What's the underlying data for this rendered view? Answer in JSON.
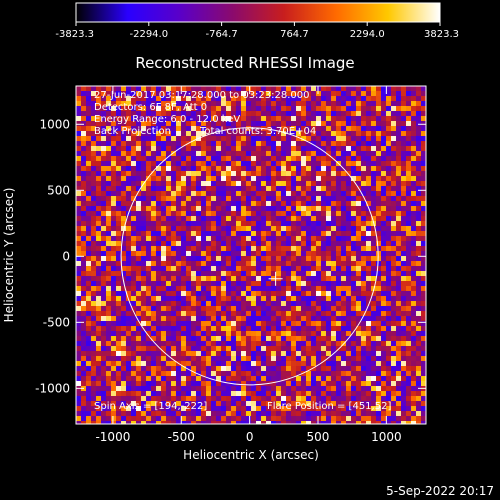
{
  "colorbar": {
    "ticks": [
      "-3823.3",
      "-2294.0",
      "-764.7",
      "764.7",
      "2294.0",
      "3823.3"
    ],
    "tick_values": [
      -3823.3,
      -2294.0,
      -764.7,
      764.7,
      2294.0,
      3823.3
    ],
    "range": [
      -3823.3,
      3823.3
    ],
    "colormap": [
      "#000000",
      "#2a00ff",
      "#5a00c8",
      "#8a0a6e",
      "#c81e1e",
      "#ff6a00",
      "#ffc800",
      "#ffffff"
    ]
  },
  "footer": {
    "date": "5-Sep-2022 20:17"
  },
  "chart_data": {
    "type": "heatmap",
    "title": "Reconstructed RHESSI Image",
    "xlabel": "Heliocentric X (arcsec)",
    "ylabel": "Heliocentric Y (arcsec)",
    "xlim": [
      -1270,
      1290
    ],
    "ylim": [
      -1270,
      1290
    ],
    "x_ticks": [
      -1000,
      -500,
      0,
      500,
      1000
    ],
    "y_ticks": [
      -1000,
      -500,
      0,
      500,
      1000
    ],
    "x_tick_labels": [
      "-1000",
      "-500",
      "0",
      "500",
      "1000"
    ],
    "y_tick_labels": [
      "-1000",
      "-500",
      "0",
      "500",
      "1000"
    ],
    "annotations": {
      "time_range": "27-Jun-2017 03:17:28.000 to 03:23:28.000",
      "detectors": "Detectors: 6F 8F, Att 0",
      "energy_range": "Energy Range: 6.0 - 12.0 keV",
      "method": "Back Projection",
      "total_counts": "Total counts: 3.70E+04",
      "spin_axis": "Spin Axis = [194,-222]",
      "flare_position": "Flare Position = [451,52]"
    },
    "solar_limb": {
      "center": [
        0,
        0
      ],
      "radius_arcsec": 940
    },
    "map_center_marker": [
      190,
      -170
    ],
    "grid": false
  }
}
